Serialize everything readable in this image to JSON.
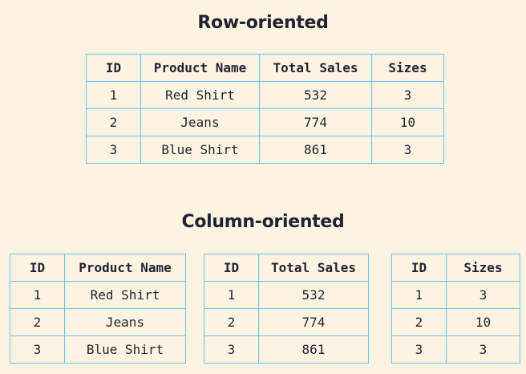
{
  "row_oriented": {
    "title": "Row-oriented",
    "headers": [
      "ID",
      "Product Name",
      "Total Sales",
      "Sizes"
    ],
    "rows": [
      [
        "1",
        "Red Shirt",
        "532",
        "3"
      ],
      [
        "2",
        "Jeans",
        "774",
        "10"
      ],
      [
        "3",
        "Blue Shirt",
        "861",
        "3"
      ]
    ]
  },
  "column_oriented": {
    "title": "Column-oriented",
    "tables": [
      {
        "headers": [
          "ID",
          "Product Name"
        ],
        "rows": [
          [
            "1",
            "Red Shirt"
          ],
          [
            "2",
            "Jeans"
          ],
          [
            "3",
            "Blue Shirt"
          ]
        ]
      },
      {
        "headers": [
          "ID",
          "Total Sales"
        ],
        "rows": [
          [
            "1",
            "532"
          ],
          [
            "2",
            "774"
          ],
          [
            "3",
            "861"
          ]
        ]
      },
      {
        "headers": [
          "ID",
          "Sizes"
        ],
        "rows": [
          [
            "1",
            "3"
          ],
          [
            "2",
            "10"
          ],
          [
            "3",
            "3"
          ]
        ]
      }
    ]
  },
  "colors": {
    "background": "#fdf3e1",
    "border": "#6ec1ee",
    "text": "#1f2333"
  }
}
